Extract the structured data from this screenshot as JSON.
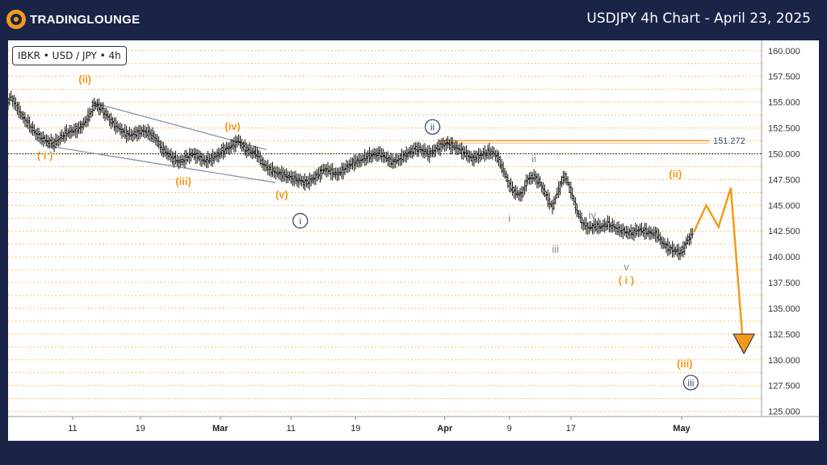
{
  "header": {
    "logo_text": "TRADINGLOUNGE",
    "title": "USDJPY 4h Chart - April 23, 2025"
  },
  "symbol_label": "IBKR • USD / JPY • 4h",
  "colors": {
    "background": "#1a2447",
    "orange": "#f39a1c",
    "navy": "#3b4a6b",
    "gray": "#888888",
    "grid": "#f5a623"
  },
  "chart_data": {
    "type": "line",
    "x_ticks": [
      "11",
      "19",
      "Mar",
      "11",
      "19",
      "Apr",
      "9",
      "17",
      "May"
    ],
    "y_ticks": [
      "160.000",
      "157.500",
      "155.000",
      "152.500",
      "150.000",
      "147.500",
      "145.000",
      "142.500",
      "140.000",
      "137.500",
      "135.000",
      "132.500",
      "130.000",
      "127.500",
      "125.000"
    ],
    "ylim": [
      124.5,
      161.0
    ],
    "resistance": {
      "value": 151.272,
      "label": "151.272"
    },
    "price_series": [
      [
        0,
        155.0
      ],
      [
        1,
        155.5
      ],
      [
        3,
        154.5
      ],
      [
        5,
        153.5
      ],
      [
        7,
        152.8
      ],
      [
        9,
        152.0
      ],
      [
        11,
        151.5
      ],
      [
        13,
        151.2
      ],
      [
        15,
        151.0
      ],
      [
        17,
        151.5
      ],
      [
        19,
        152.0
      ],
      [
        21,
        152.2
      ],
      [
        23,
        152.4
      ],
      [
        25,
        153.0
      ],
      [
        27,
        154.0
      ],
      [
        28,
        154.8
      ],
      [
        30,
        154.5
      ],
      [
        32,
        153.8
      ],
      [
        34,
        153.0
      ],
      [
        36,
        152.5
      ],
      [
        38,
        152.0
      ],
      [
        40,
        151.8
      ],
      [
        42,
        152.0
      ],
      [
        44,
        152.2
      ],
      [
        46,
        152.0
      ],
      [
        48,
        151.5
      ],
      [
        50,
        150.5
      ],
      [
        52,
        150.0
      ],
      [
        54,
        149.5
      ],
      [
        56,
        149.2
      ],
      [
        58,
        149.6
      ],
      [
        60,
        150.0
      ],
      [
        62,
        149.7
      ],
      [
        64,
        149.3
      ],
      [
        66,
        149.5
      ],
      [
        68,
        149.8
      ],
      [
        70,
        150.3
      ],
      [
        72,
        150.6
      ],
      [
        74,
        151.0
      ],
      [
        75,
        151.3
      ],
      [
        77,
        150.5
      ],
      [
        79,
        150.2
      ],
      [
        81,
        150.0
      ],
      [
        83,
        149.0
      ],
      [
        85,
        148.5
      ],
      [
        87,
        148.2
      ],
      [
        89,
        148.0
      ],
      [
        91,
        147.8
      ],
      [
        93,
        147.6
      ],
      [
        95,
        147.4
      ],
      [
        97,
        147.2
      ],
      [
        99,
        147.5
      ],
      [
        101,
        148.0
      ],
      [
        103,
        148.5
      ],
      [
        105,
        148.3
      ],
      [
        107,
        148.0
      ],
      [
        109,
        148.4
      ],
      [
        111,
        148.9
      ],
      [
        113,
        149.2
      ],
      [
        115,
        149.4
      ],
      [
        117,
        149.7
      ],
      [
        119,
        149.9
      ],
      [
        121,
        150.0
      ],
      [
        123,
        149.6
      ],
      [
        125,
        149.2
      ],
      [
        127,
        149.4
      ],
      [
        129,
        149.8
      ],
      [
        131,
        150.2
      ],
      [
        133,
        150.5
      ],
      [
        135,
        150.3
      ],
      [
        137,
        150.0
      ],
      [
        139,
        150.4
      ],
      [
        141,
        150.8
      ],
      [
        143,
        151.0
      ],
      [
        145,
        150.7
      ],
      [
        147,
        150.4
      ],
      [
        149,
        150.0
      ],
      [
        151,
        149.5
      ],
      [
        153,
        149.8
      ],
      [
        155,
        150.0
      ],
      [
        157,
        150.2
      ],
      [
        159,
        149.8
      ],
      [
        161,
        148.5
      ],
      [
        163,
        147.0
      ],
      [
        165,
        146.2
      ],
      [
        167,
        146.0
      ],
      [
        169,
        147.5
      ],
      [
        171,
        147.8
      ],
      [
        173,
        147.2
      ],
      [
        175,
        146.0
      ],
      [
        177,
        144.8
      ],
      [
        179,
        146.5
      ],
      [
        181,
        147.9
      ],
      [
        183,
        146.5
      ],
      [
        185,
        144.5
      ],
      [
        187,
        143.2
      ],
      [
        189,
        142.8
      ],
      [
        191,
        143.0
      ],
      [
        193,
        142.9
      ],
      [
        195,
        143.2
      ],
      [
        197,
        142.9
      ],
      [
        199,
        142.6
      ],
      [
        201,
        142.4
      ],
      [
        203,
        142.3
      ],
      [
        205,
        142.6
      ],
      [
        207,
        142.5
      ],
      [
        209,
        142.3
      ],
      [
        211,
        142.2
      ],
      [
        213,
        141.3
      ],
      [
        215,
        140.8
      ],
      [
        217,
        140.6
      ],
      [
        219,
        140.4
      ],
      [
        221,
        141.6
      ],
      [
        223,
        142.4
      ]
    ],
    "projection": [
      [
        223,
        142.4
      ],
      [
        227,
        145.0
      ],
      [
        231,
        142.9
      ],
      [
        235,
        146.7
      ],
      [
        239,
        131.4
      ]
    ],
    "channel_lines": [
      {
        "from": [
          27,
          155.0
        ],
        "to": [
          84,
          150.4
        ]
      },
      {
        "from": [
          12,
          150.8
        ],
        "to": [
          87,
          147.2
        ]
      }
    ],
    "wave_labels": [
      {
        "text": "( i )",
        "series": "orange",
        "x": 12,
        "y": 149.8
      },
      {
        "text": "(ii)",
        "series": "orange",
        "x": 25,
        "y": 157.2
      },
      {
        "text": "(iii)",
        "series": "orange",
        "x": 57,
        "y": 147.3
      },
      {
        "text": "(iv)",
        "series": "orange",
        "x": 73,
        "y": 152.6
      },
      {
        "text": "(v)",
        "series": "orange",
        "x": 89,
        "y": 146.0
      },
      {
        "text": "i",
        "series": "navy-circle",
        "x": 95,
        "y": 143.5
      },
      {
        "text": "ii",
        "series": "navy-circle",
        "x": 138,
        "y": 152.6
      },
      {
        "text": "i",
        "series": "gray",
        "x": 163,
        "y": 143.7
      },
      {
        "text": "ii",
        "series": "gray",
        "x": 171,
        "y": 149.5
      },
      {
        "text": "iii",
        "series": "gray",
        "x": 178,
        "y": 140.7
      },
      {
        "text": "iv",
        "series": "gray",
        "x": 190,
        "y": 144.0
      },
      {
        "text": "v",
        "series": "gray",
        "x": 201,
        "y": 139.0
      },
      {
        "text": "( i )",
        "series": "orange",
        "x": 201,
        "y": 137.7
      },
      {
        "text": "(ii)",
        "series": "orange",
        "x": 217,
        "y": 148.0
      },
      {
        "text": "(iii)",
        "series": "orange",
        "x": 220,
        "y": 129.6
      },
      {
        "text": "iii",
        "series": "navy-circle",
        "x": 222,
        "y": 127.8
      }
    ]
  }
}
